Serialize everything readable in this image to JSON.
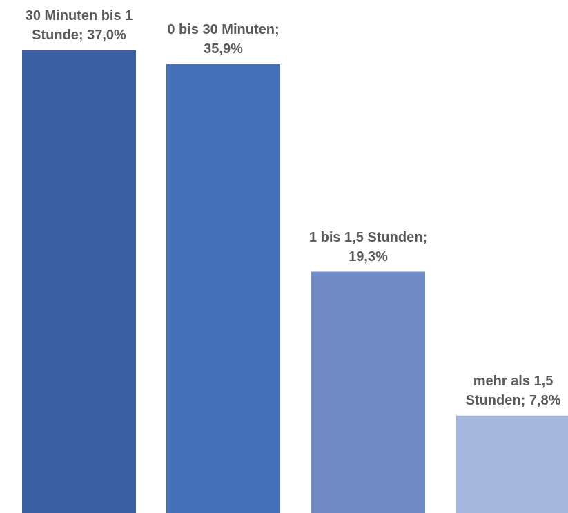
{
  "chart_data": {
    "type": "bar",
    "categories": [
      "30 Minuten bis 1 Stunde",
      "0 bis 30 Minuten",
      "1 bis 1,5 Stunden",
      "mehr als 1,5 Stunden"
    ],
    "values": [
      37.0,
      35.9,
      19.3,
      7.8
    ],
    "unit": "%",
    "data_labels": [
      [
        "30 Minuten bis 1",
        "Stunde; 37,0%"
      ],
      [
        "0 bis 30 Minuten;",
        "35,9%"
      ],
      [
        "1 bis 1,5 Stunden;",
        "19,3%"
      ],
      [
        "mehr als 1,5",
        "Stunden; 7,8%"
      ]
    ],
    "colors": [
      "#3A5FA3",
      "#4570B8",
      "#6F8AC5",
      "#A6B6DD"
    ],
    "title": "",
    "xlabel": "",
    "ylabel": "",
    "ylim": [
      0,
      37.0
    ],
    "grid": false,
    "legend": "none"
  }
}
